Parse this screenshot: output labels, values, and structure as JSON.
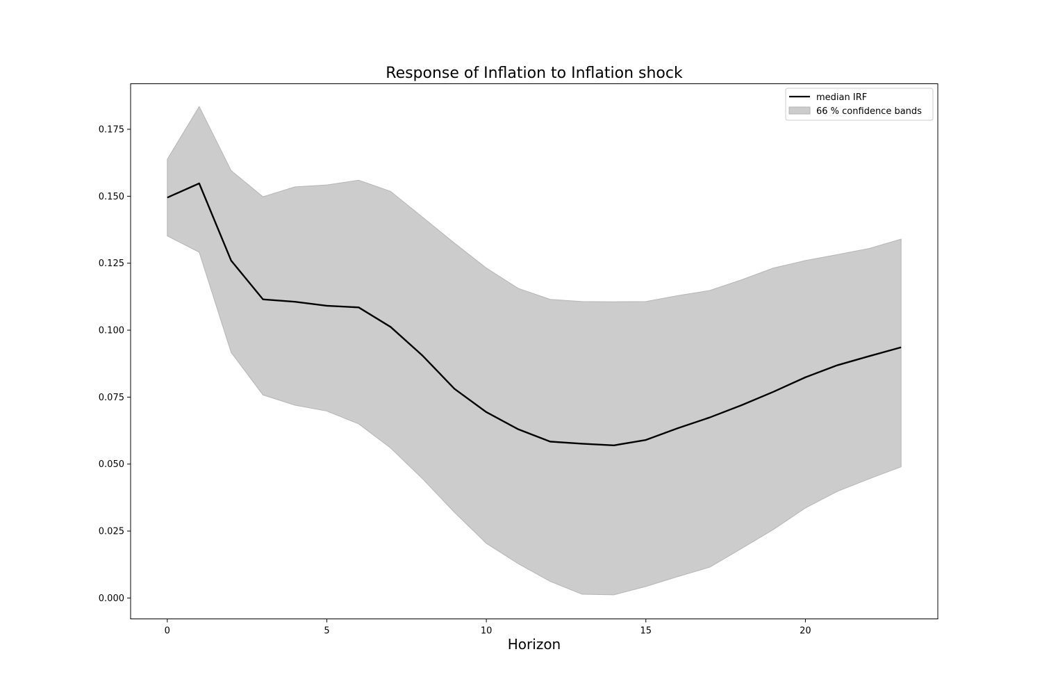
{
  "chart_data": {
    "type": "line",
    "title": "Response of Inflation to Inflation shock",
    "xlabel": "Horizon",
    "ylabel": "",
    "xlim": [
      -1.15,
      24.15
    ],
    "ylim": [
      -0.0078,
      0.192
    ],
    "xticks": [
      0,
      5,
      10,
      15,
      20
    ],
    "yticks": [
      0.0,
      0.025,
      0.05,
      0.075,
      0.1,
      0.125,
      0.15,
      0.175
    ],
    "xtick_labels": [
      "0",
      "5",
      "10",
      "15",
      "20"
    ],
    "ytick_labels": [
      "0.000",
      "0.025",
      "0.050",
      "0.075",
      "0.100",
      "0.125",
      "0.150",
      "0.175"
    ],
    "x": [
      0,
      1,
      2,
      3,
      4,
      5,
      6,
      7,
      8,
      9,
      10,
      11,
      12,
      13,
      14,
      15,
      16,
      17,
      18,
      19,
      20,
      21,
      22,
      23
    ],
    "series": [
      {
        "name": "median IRF",
        "values": [
          0.1495,
          0.1548,
          0.126,
          0.1115,
          0.1106,
          0.1091,
          0.1085,
          0.1012,
          0.0905,
          0.0781,
          0.0694,
          0.063,
          0.0584,
          0.0576,
          0.057,
          0.059,
          0.0634,
          0.0674,
          0.072,
          0.077,
          0.0824,
          0.0869,
          0.0903,
          0.0936
        ],
        "color": "#000000"
      }
    ],
    "band": {
      "name": "66 % confidence bands",
      "lower": [
        0.1352,
        0.1291,
        0.0917,
        0.0758,
        0.072,
        0.0698,
        0.065,
        0.056,
        0.0445,
        0.032,
        0.0204,
        0.0128,
        0.0062,
        0.0014,
        0.0012,
        0.0043,
        0.008,
        0.0115,
        0.0185,
        0.0256,
        0.0336,
        0.0398,
        0.0445,
        0.049
      ],
      "upper": [
        0.1638,
        0.1835,
        0.1596,
        0.1498,
        0.1535,
        0.1542,
        0.156,
        0.1518,
        0.1422,
        0.1325,
        0.1232,
        0.1156,
        0.1115,
        0.1107,
        0.1106,
        0.1107,
        0.1129,
        0.1148,
        0.1188,
        0.1232,
        0.126,
        0.1282,
        0.1305,
        0.134
      ],
      "fill": "#cccccc",
      "edge": "#b5b5b5"
    },
    "legend": {
      "placement": "top-right",
      "entries": [
        "median IRF",
        "66 % confidence bands"
      ]
    },
    "grid": false
  }
}
